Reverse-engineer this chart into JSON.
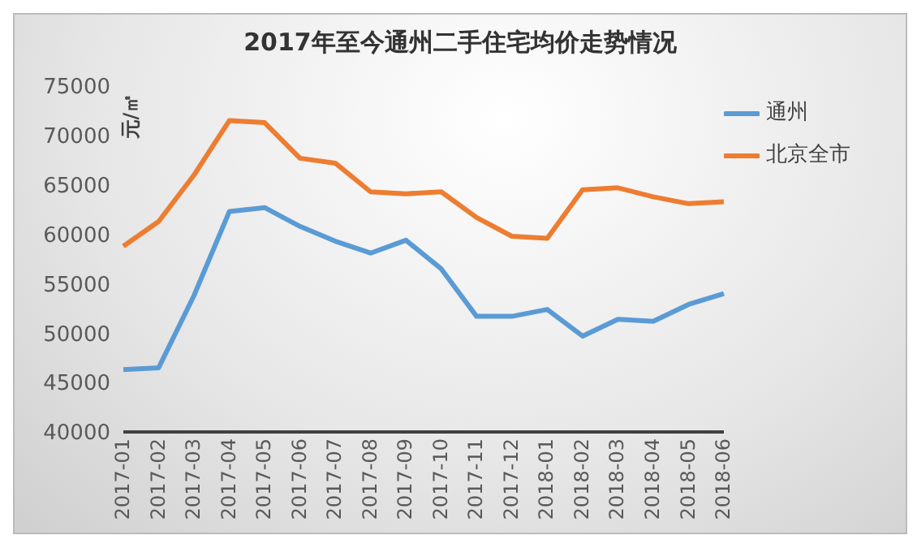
{
  "chart_data": {
    "type": "line",
    "title": "2017年至今通州二手住宅均价走势情况",
    "ylabel": "元/㎡",
    "categories": [
      "2017-01",
      "2017-02",
      "2017-03",
      "2017-04",
      "2017-05",
      "2017-06",
      "2017-07",
      "2017-08",
      "2017-09",
      "2017-10",
      "2017-11",
      "2017-12",
      "2018-01",
      "2018-02",
      "2018-03",
      "2018-04",
      "2018-05",
      "2018-06"
    ],
    "series": [
      {
        "name": "通州",
        "color": "#5b9bd5",
        "values": [
          46300,
          46500,
          53800,
          62300,
          62700,
          60800,
          59300,
          58100,
          59400,
          56500,
          51700,
          51700,
          52400,
          49700,
          51400,
          51200,
          52900,
          54000
        ]
      },
      {
        "name": "北京全市",
        "color": "#ed7d31",
        "values": [
          58800,
          61300,
          66000,
          71500,
          71300,
          67700,
          67200,
          64300,
          64100,
          64300,
          61700,
          59800,
          59600,
          64500,
          64700,
          63800,
          63100,
          63300
        ]
      }
    ],
    "ylim": [
      40000,
      75000
    ],
    "yticks": [
      40000,
      45000,
      50000,
      55000,
      60000,
      65000,
      70000,
      75000
    ],
    "grid": false,
    "legend": "top right",
    "marker": "none",
    "line_style": "solid"
  }
}
